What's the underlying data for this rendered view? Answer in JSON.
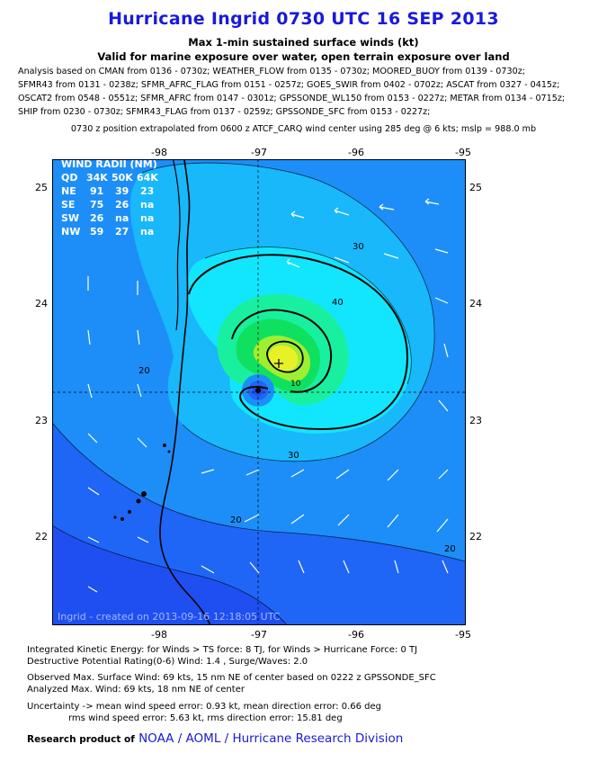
{
  "header": {
    "title": "Hurricane Ingrid 0730 UTC 16 SEP 2013",
    "subtitle1": "Max 1-min sustained surface winds (kt)",
    "subtitle2": "Valid for marine exposure over water, open terrain exposure over land"
  },
  "analysis_lines": [
    "Analysis based on CMAN from 0136 - 0730z; WEATHER_FLOW from 0135 - 0730z; MOORED_BUOY from 0139 - 0730z;",
    "SFMR43 from 0131 - 0238z; SFMR_AFRC_FLAG from 0151 - 0257z; GOES_SWIR from 0402 - 0702z; ASCAT from 0327 - 0415z;",
    "OSCAT2 from 0548 - 0551z; SFMR_AFRC from 0147 - 0301z; GPSSONDE_WL150 from 0153 - 0227z; METAR from 0134 - 0715z;",
    "SHIP from 0230 - 0730z; SFMR43_FLAG from 0137 - 0259z; GPSSONDE_SFC from 0153 - 0227z;"
  ],
  "position_note": "0730 z position extrapolated from 0600 z ATCF_CARQ wind center using 285 deg @ 6 kts; mslp = 988.0 mb",
  "map": {
    "lon_ticks": [
      "-98",
      "-97",
      "-96",
      "-95"
    ],
    "lat_ticks": [
      "25",
      "24",
      "23",
      "22"
    ],
    "contour_labels": [
      "30",
      "40",
      "30",
      "20",
      "20",
      "20",
      "10"
    ],
    "center_lon": -97.0,
    "center_lat": 23.25,
    "max_wind_lon": -96.82,
    "max_wind_lat": 23.55,
    "credit_line": "Ingrid - created on 2013-09-16 12:18:05 UTC",
    "colors": {
      "background": "#1f4ff0",
      "ring_10": "#1f66f6",
      "ring_20": "#1d8ef8",
      "ring_30": "#18b8fb",
      "ring_40": "#12e6ff",
      "ring_50": "#18f0a0",
      "ring_60": "#10e060",
      "ring_64": "#a0ee30",
      "ring_66": "#e8f028",
      "land": "#ffffff"
    }
  },
  "wind_radii": {
    "title": "WIND RADII (NM)",
    "header": [
      "QD",
      "34K",
      "50K",
      "64K"
    ],
    "rows": [
      [
        "NE",
        "91",
        "39",
        "23"
      ],
      [
        "SE",
        "75",
        "26",
        "na"
      ],
      [
        "SW",
        "26",
        "na",
        "na"
      ],
      [
        "NW",
        "59",
        "27",
        "na"
      ]
    ]
  },
  "footer": {
    "ike": "Integrated Kinetic Energy: for Winds > TS force: 8 TJ, for Winds > Hurricane Force: 0 TJ",
    "dpr": "Destructive Potential Rating(0-6)  Wind: 1.4 , Surge/Waves: 2.0",
    "obs_max": "Observed Max. Surface Wind: 69 kts, 15 nm NE of center based on 0222 z GPSSONDE_SFC",
    "ana_max": "Analyzed Max. Wind: 69 kts, 18 nm  NE of center",
    "uncert1": "Uncertainty -> mean wind speed error: 0.93 kt, mean direction error: 0.66 deg",
    "uncert2": "rms wind speed error: 5.63 kt, rms direction error: 15.81 deg",
    "credit_prefix": "Research product of",
    "credit_org": "NOAA / AOML / Hurricane Research Division"
  }
}
